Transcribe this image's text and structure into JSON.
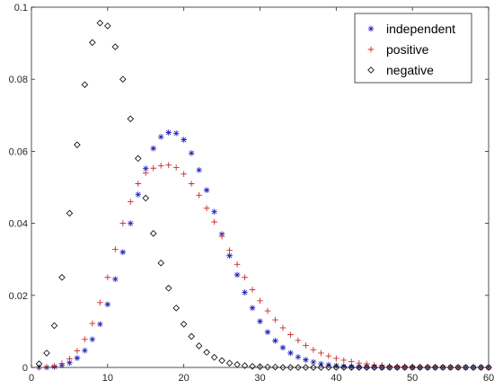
{
  "chart_data": {
    "type": "scatter",
    "xlim": [
      0,
      60
    ],
    "ylim": [
      0,
      0.1
    ],
    "x_ticks": [
      0,
      10,
      20,
      30,
      40,
      50,
      60
    ],
    "y_ticks": [
      0,
      0.02,
      0.04,
      0.06,
      0.08,
      0.1
    ],
    "x_tick_labels": [
      "0",
      "10",
      "20",
      "30",
      "40",
      "50",
      "60"
    ],
    "y_tick_labels": [
      "0",
      "0.02",
      "0.04",
      "0.06",
      "0.08",
      "0.1"
    ],
    "grid": false,
    "legend_position": "top-right",
    "x": [
      1,
      2,
      3,
      4,
      5,
      6,
      7,
      8,
      9,
      10,
      11,
      12,
      13,
      14,
      15,
      16,
      17,
      18,
      19,
      20,
      21,
      22,
      23,
      24,
      25,
      26,
      27,
      28,
      29,
      30,
      31,
      32,
      33,
      34,
      35,
      36,
      37,
      38,
      39,
      40,
      41,
      42,
      43,
      44,
      45,
      46,
      47,
      48,
      49,
      50,
      51,
      52,
      53,
      54,
      55,
      56,
      57,
      58,
      59,
      60
    ],
    "series": [
      {
        "name": "independent",
        "marker": "asterisk",
        "color": "#1f1fbf",
        "values": [
          0.0,
          0.0,
          0.0002,
          0.0006,
          0.0013,
          0.0026,
          0.0047,
          0.0078,
          0.012,
          0.0175,
          0.0245,
          0.032,
          0.04,
          0.048,
          0.0552,
          0.0608,
          0.064,
          0.0652,
          0.065,
          0.0632,
          0.0595,
          0.0548,
          0.0492,
          0.0432,
          0.037,
          0.031,
          0.0257,
          0.0208,
          0.0165,
          0.0128,
          0.0098,
          0.0074,
          0.0055,
          0.004,
          0.0029,
          0.0021,
          0.0015,
          0.001,
          0.0007,
          0.0005,
          0.0003,
          0.0002,
          0.0001,
          0.0001,
          0.0001,
          0.0,
          0.0,
          0.0,
          0.0,
          0.0,
          0.0,
          0.0,
          0.0,
          0.0,
          0.0,
          0.0,
          0.0,
          0.0,
          0.0,
          0.0
        ]
      },
      {
        "name": "positive",
        "marker": "plus",
        "color": "#cc2a2a",
        "values": [
          0.0,
          0.0001,
          0.0004,
          0.0011,
          0.0024,
          0.0046,
          0.0078,
          0.0122,
          0.018,
          0.025,
          0.0328,
          0.04,
          0.046,
          0.051,
          0.054,
          0.0553,
          0.056,
          0.0562,
          0.0555,
          0.0537,
          0.051,
          0.0478,
          0.0442,
          0.0404,
          0.0364,
          0.0325,
          0.0286,
          0.025,
          0.0216,
          0.0185,
          0.0157,
          0.0132,
          0.011,
          0.0091,
          0.0075,
          0.0061,
          0.0049,
          0.004,
          0.0032,
          0.0025,
          0.002,
          0.0016,
          0.0012,
          0.001,
          0.0007,
          0.0006,
          0.0004,
          0.0003,
          0.0003,
          0.0002,
          0.0001,
          0.0001,
          0.0001,
          0.0001,
          0.0,
          0.0,
          0.0,
          0.0,
          0.0,
          0.0
        ]
      },
      {
        "name": "negative",
        "marker": "diamond",
        "color": "#000000",
        "values": [
          0.001,
          0.004,
          0.0116,
          0.025,
          0.0428,
          0.0618,
          0.0785,
          0.0902,
          0.0956,
          0.0948,
          0.089,
          0.08,
          0.069,
          0.058,
          0.047,
          0.0372,
          0.029,
          0.022,
          0.0165,
          0.012,
          0.0086,
          0.006,
          0.0042,
          0.0028,
          0.0019,
          0.0012,
          0.0008,
          0.0005,
          0.0003,
          0.0002,
          0.0001,
          0.0001,
          0.0,
          0.0,
          0.0,
          0.0,
          0.0,
          0.0,
          0.0,
          0.0,
          0.0,
          0.0,
          0.0,
          0.0,
          0.0,
          0.0,
          0.0,
          0.0,
          0.0,
          0.0,
          0.0,
          0.0,
          0.0,
          0.0,
          0.0,
          0.0,
          0.0,
          0.0,
          0.0,
          0.0
        ]
      }
    ]
  }
}
